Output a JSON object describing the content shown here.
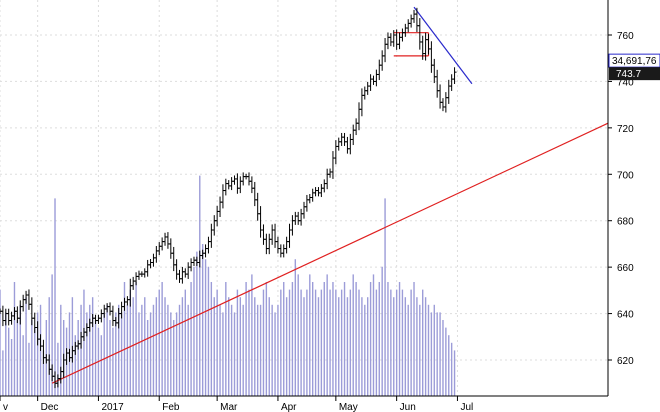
{
  "chart_data": {
    "type": "ohlc",
    "title": "",
    "xlabel": "",
    "ylabel": "",
    "ylim": [
      604,
      774
    ],
    "yticks": [
      620,
      640,
      660,
      680,
      700,
      720,
      740,
      760
    ],
    "grid": true,
    "months": [
      {
        "label": "v",
        "x": 0
      },
      {
        "label": "Dec",
        "x": 13
      },
      {
        "label": "2017",
        "x": 34
      },
      {
        "label": "Feb",
        "x": 55
      },
      {
        "label": "Mar",
        "x": 75
      },
      {
        "label": "Apr",
        "x": 96
      },
      {
        "label": "May",
        "x": 116
      },
      {
        "label": "Jun",
        "x": 137
      },
      {
        "label": "Jul",
        "x": 158
      }
    ],
    "last_value_tag": "743.7",
    "secondary_value_tag": "34,691,76",
    "series": [
      {
        "name": "Price",
        "kind": "ohlc",
        "points": [
          {
            "x": 0,
            "c": 641
          },
          {
            "x": 1,
            "c": 637
          },
          {
            "x": 2,
            "c": 640
          },
          {
            "x": 3,
            "c": 637
          },
          {
            "x": 4,
            "c": 639
          },
          {
            "x": 5,
            "c": 641
          },
          {
            "x": 6,
            "c": 638
          },
          {
            "x": 7,
            "c": 643
          },
          {
            "x": 8,
            "c": 646
          },
          {
            "x": 9,
            "c": 648
          },
          {
            "x": 10,
            "c": 644
          },
          {
            "x": 11,
            "c": 638
          },
          {
            "x": 12,
            "c": 634
          },
          {
            "x": 13,
            "c": 629
          },
          {
            "x": 14,
            "c": 626
          },
          {
            "x": 15,
            "c": 621
          },
          {
            "x": 16,
            "c": 620
          },
          {
            "x": 17,
            "c": 616
          },
          {
            "x": 18,
            "c": 613
          },
          {
            "x": 19,
            "c": 610
          },
          {
            "x": 20,
            "c": 612
          },
          {
            "x": 21,
            "c": 615
          },
          {
            "x": 22,
            "c": 620
          },
          {
            "x": 23,
            "c": 623
          },
          {
            "x": 24,
            "c": 621
          },
          {
            "x": 25,
            "c": 624
          },
          {
            "x": 26,
            "c": 626
          },
          {
            "x": 27,
            "c": 627
          },
          {
            "x": 28,
            "c": 630
          },
          {
            "x": 29,
            "c": 632
          },
          {
            "x": 30,
            "c": 634
          },
          {
            "x": 31,
            "c": 636
          },
          {
            "x": 32,
            "c": 638
          },
          {
            "x": 33,
            "c": 637
          },
          {
            "x": 34,
            "c": 638
          },
          {
            "x": 35,
            "c": 640
          },
          {
            "x": 36,
            "c": 642
          },
          {
            "x": 37,
            "c": 643
          },
          {
            "x": 38,
            "c": 641
          },
          {
            "x": 39,
            "c": 637
          },
          {
            "x": 40,
            "c": 636
          },
          {
            "x": 41,
            "c": 640
          },
          {
            "x": 42,
            "c": 643
          },
          {
            "x": 43,
            "c": 645
          },
          {
            "x": 44,
            "c": 646
          },
          {
            "x": 45,
            "c": 652
          },
          {
            "x": 46,
            "c": 654
          },
          {
            "x": 47,
            "c": 656
          },
          {
            "x": 48,
            "c": 657
          },
          {
            "x": 49,
            "c": 657
          },
          {
            "x": 50,
            "c": 658
          },
          {
            "x": 51,
            "c": 661
          },
          {
            "x": 52,
            "c": 662
          },
          {
            "x": 53,
            "c": 664
          },
          {
            "x": 54,
            "c": 667
          },
          {
            "x": 55,
            "c": 669
          },
          {
            "x": 56,
            "c": 671
          },
          {
            "x": 57,
            "c": 673
          },
          {
            "x": 58,
            "c": 670
          },
          {
            "x": 59,
            "c": 666
          },
          {
            "x": 60,
            "c": 661
          },
          {
            "x": 61,
            "c": 657
          },
          {
            "x": 62,
            "c": 655
          },
          {
            "x": 63,
            "c": 658
          },
          {
            "x": 64,
            "c": 657
          },
          {
            "x": 65,
            "c": 660
          },
          {
            "x": 66,
            "c": 662
          },
          {
            "x": 67,
            "c": 663
          },
          {
            "x": 68,
            "c": 662
          },
          {
            "x": 69,
            "c": 665
          },
          {
            "x": 70,
            "c": 666
          },
          {
            "x": 71,
            "c": 668
          },
          {
            "x": 72,
            "c": 671
          },
          {
            "x": 73,
            "c": 676
          },
          {
            "x": 74,
            "c": 680
          },
          {
            "x": 75,
            "c": 684
          },
          {
            "x": 76,
            "c": 688
          },
          {
            "x": 77,
            "c": 693
          },
          {
            "x": 78,
            "c": 696
          },
          {
            "x": 79,
            "c": 695
          },
          {
            "x": 80,
            "c": 697
          },
          {
            "x": 81,
            "c": 698
          },
          {
            "x": 82,
            "c": 694
          },
          {
            "x": 83,
            "c": 697
          },
          {
            "x": 84,
            "c": 699
          },
          {
            "x": 85,
            "c": 699
          },
          {
            "x": 86,
            "c": 697
          },
          {
            "x": 87,
            "c": 694
          },
          {
            "x": 88,
            "c": 689
          },
          {
            "x": 89,
            "c": 683
          },
          {
            "x": 90,
            "c": 676
          },
          {
            "x": 91,
            "c": 672
          },
          {
            "x": 92,
            "c": 668
          },
          {
            "x": 93,
            "c": 672
          },
          {
            "x": 94,
            "c": 676
          },
          {
            "x": 95,
            "c": 671
          },
          {
            "x": 96,
            "c": 668
          },
          {
            "x": 97,
            "c": 666
          },
          {
            "x": 98,
            "c": 668
          },
          {
            "x": 99,
            "c": 671
          },
          {
            "x": 100,
            "c": 676
          },
          {
            "x": 101,
            "c": 680
          },
          {
            "x": 102,
            "c": 682
          },
          {
            "x": 103,
            "c": 680
          },
          {
            "x": 104,
            "c": 683
          },
          {
            "x": 105,
            "c": 686
          },
          {
            "x": 106,
            "c": 689
          },
          {
            "x": 107,
            "c": 690
          },
          {
            "x": 108,
            "c": 692
          },
          {
            "x": 109,
            "c": 693
          },
          {
            "x": 110,
            "c": 692
          },
          {
            "x": 111,
            "c": 694
          },
          {
            "x": 112,
            "c": 696
          },
          {
            "x": 113,
            "c": 700
          },
          {
            "x": 114,
            "c": 701
          },
          {
            "x": 115,
            "c": 707
          },
          {
            "x": 116,
            "c": 712
          },
          {
            "x": 117,
            "c": 714
          },
          {
            "x": 118,
            "c": 716
          },
          {
            "x": 119,
            "c": 714
          },
          {
            "x": 120,
            "c": 711
          },
          {
            "x": 121,
            "c": 715
          },
          {
            "x": 122,
            "c": 719
          },
          {
            "x": 123,
            "c": 722
          },
          {
            "x": 124,
            "c": 728
          },
          {
            "x": 125,
            "c": 734
          },
          {
            "x": 126,
            "c": 736
          },
          {
            "x": 127,
            "c": 738
          },
          {
            "x": 128,
            "c": 741
          },
          {
            "x": 129,
            "c": 740
          },
          {
            "x": 130,
            "c": 743
          },
          {
            "x": 131,
            "c": 747
          },
          {
            "x": 132,
            "c": 751
          },
          {
            "x": 133,
            "c": 756
          },
          {
            "x": 134,
            "c": 759
          },
          {
            "x": 135,
            "c": 757
          },
          {
            "x": 136,
            "c": 760
          },
          {
            "x": 137,
            "c": 756
          },
          {
            "x": 138,
            "c": 759
          },
          {
            "x": 139,
            "c": 761
          },
          {
            "x": 140,
            "c": 763
          },
          {
            "x": 141,
            "c": 765
          },
          {
            "x": 142,
            "c": 767
          },
          {
            "x": 143,
            "c": 769
          },
          {
            "x": 144,
            "c": 764
          },
          {
            "x": 145,
            "c": 757
          },
          {
            "x": 146,
            "c": 752
          },
          {
            "x": 147,
            "c": 758
          },
          {
            "x": 148,
            "c": 754
          },
          {
            "x": 149,
            "c": 747
          },
          {
            "x": 150,
            "c": 742
          },
          {
            "x": 151,
            "c": 736
          },
          {
            "x": 152,
            "c": 731
          },
          {
            "x": 153,
            "c": 729
          },
          {
            "x": 154,
            "c": 733
          },
          {
            "x": 155,
            "c": 738
          },
          {
            "x": 156,
            "c": 741
          },
          {
            "x": 157,
            "c": 744
          }
        ]
      },
      {
        "name": "Volume",
        "kind": "volume",
        "values": [
          28,
          12,
          22,
          18,
          15,
          30,
          20,
          24,
          16,
          26,
          14,
          20,
          18,
          22,
          24,
          12,
          20,
          26,
          32,
          52,
          14,
          24,
          20,
          18,
          22,
          26,
          16,
          20,
          24,
          28,
          22,
          24,
          26,
          20,
          18,
          16,
          22,
          24,
          20,
          18,
          22,
          24,
          22,
          30,
          24,
          28,
          26,
          30,
          22,
          24,
          26,
          20,
          22,
          24,
          26,
          28,
          30,
          26,
          24,
          22,
          20,
          22,
          24,
          26,
          28,
          24,
          30,
          34,
          38,
          58,
          40,
          36,
          34,
          30,
          26,
          28,
          24,
          22,
          30,
          26,
          24,
          22,
          28,
          26,
          24,
          30,
          28,
          32,
          26,
          24,
          24,
          28,
          30,
          26,
          24,
          22,
          24,
          28,
          30,
          26,
          28,
          30,
          36,
          32,
          28,
          26,
          28,
          32,
          30,
          28,
          26,
          28,
          30,
          32,
          28,
          30,
          28,
          26,
          28,
          30,
          26,
          28,
          32,
          30,
          28,
          26,
          24,
          26,
          30,
          32,
          28,
          30,
          34,
          52,
          30,
          28,
          26,
          28,
          30,
          28,
          26,
          24,
          28,
          30,
          26,
          24,
          28,
          26,
          24,
          22,
          24,
          22,
          22,
          20,
          18,
          16,
          14,
          12
        ]
      }
    ],
    "trendlines": [
      {
        "name": "support",
        "color": "#e02020",
        "from": {
          "x": 18,
          "y": 610
        },
        "to": {
          "x": 210,
          "y": 722
        }
      },
      {
        "name": "resistance",
        "color": "#2a2acc",
        "from": {
          "x": 143,
          "y": 772
        },
        "to": {
          "x": 163,
          "y": 739
        }
      }
    ],
    "rectangle": {
      "color": "#e02020",
      "x0": 136,
      "x1": 148,
      "y0": 751,
      "y1": 761
    },
    "colors": {
      "candle": "#000000",
      "volume": "#9c9cd8",
      "grid": "#dddddd",
      "tag_fill": "#1a1a1a",
      "tag_text": "#ffffff",
      "secondary_tag_fill": "#ffffff",
      "secondary_tag_border": "#2a2acc",
      "secondary_tag_text": "#000000"
    }
  }
}
